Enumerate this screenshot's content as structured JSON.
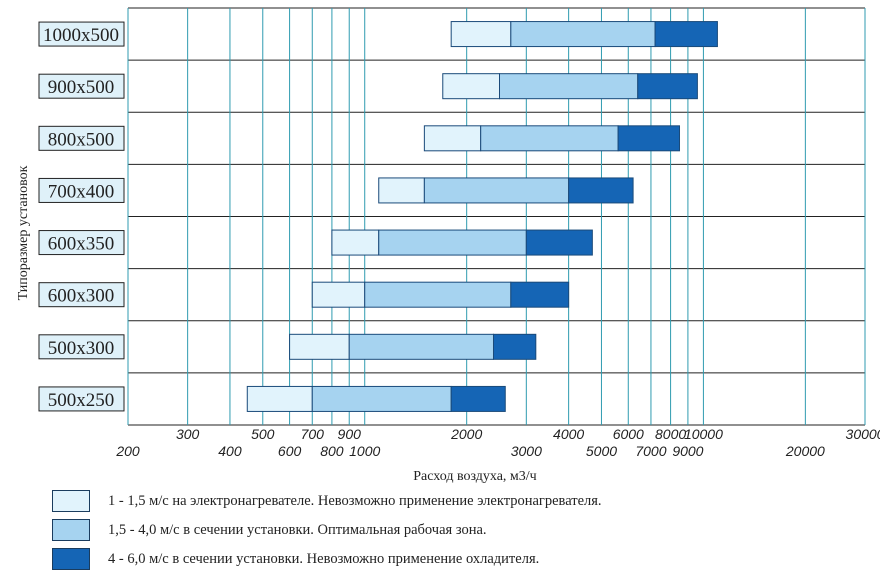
{
  "chart_data": {
    "type": "bar",
    "orientation": "horizontal",
    "title": "",
    "xlabel": "Расход воздуха, м3/ч",
    "ylabel": "Типоразмер установок",
    "x_scale": "log",
    "xlim": [
      200,
      30000
    ],
    "tick_values": [
      200,
      300,
      400,
      500,
      600,
      700,
      800,
      900,
      1000,
      2000,
      3000,
      4000,
      5000,
      6000,
      7000,
      8000,
      9000,
      10000,
      20000,
      30000
    ],
    "tick_labels_upper": [
      "300",
      "500",
      "700",
      "900",
      "2000",
      "4000",
      "6000",
      "8000",
      "10000",
      "30000"
    ],
    "tick_labels_lower": [
      "200",
      "400",
      "600",
      "800",
      "1000",
      "3000",
      "5000",
      "7000",
      "9000",
      "20000"
    ],
    "categories": [
      "1000x500",
      "900x500",
      "800x500",
      "700x400",
      "600x350",
      "600x300",
      "500x300",
      "500x250"
    ],
    "series": [
      {
        "name": "1 - 1,5 м/с на электронагревателе. Невозможно применение электронагревателя.",
        "color": "#e1f3fc",
        "ranges": [
          [
            1800,
            2700
          ],
          [
            1700,
            2500
          ],
          [
            1500,
            2200
          ],
          [
            1100,
            1500
          ],
          [
            800,
            1100
          ],
          [
            700,
            1000
          ],
          [
            600,
            900
          ],
          [
            450,
            700
          ]
        ]
      },
      {
        "name": "1,5 - 4,0 м/с в сечении установки. Оптимальная рабочая зона.",
        "color": "#a6d3f0",
        "ranges": [
          [
            2700,
            7200
          ],
          [
            2500,
            6400
          ],
          [
            2200,
            5600
          ],
          [
            1500,
            4000
          ],
          [
            1100,
            3000
          ],
          [
            1000,
            2700
          ],
          [
            900,
            2400
          ],
          [
            700,
            1800
          ]
        ]
      },
      {
        "name": "4 - 6,0 м/с в сечении установки. Невозможно применение охладителя.",
        "color": "#1565b5",
        "ranges": [
          [
            7200,
            11000
          ],
          [
            6400,
            9600
          ],
          [
            5600,
            8500
          ],
          [
            4000,
            6200
          ],
          [
            3000,
            4700
          ],
          [
            2700,
            4000
          ],
          [
            2400,
            3200
          ],
          [
            1800,
            2600
          ]
        ]
      }
    ]
  }
}
